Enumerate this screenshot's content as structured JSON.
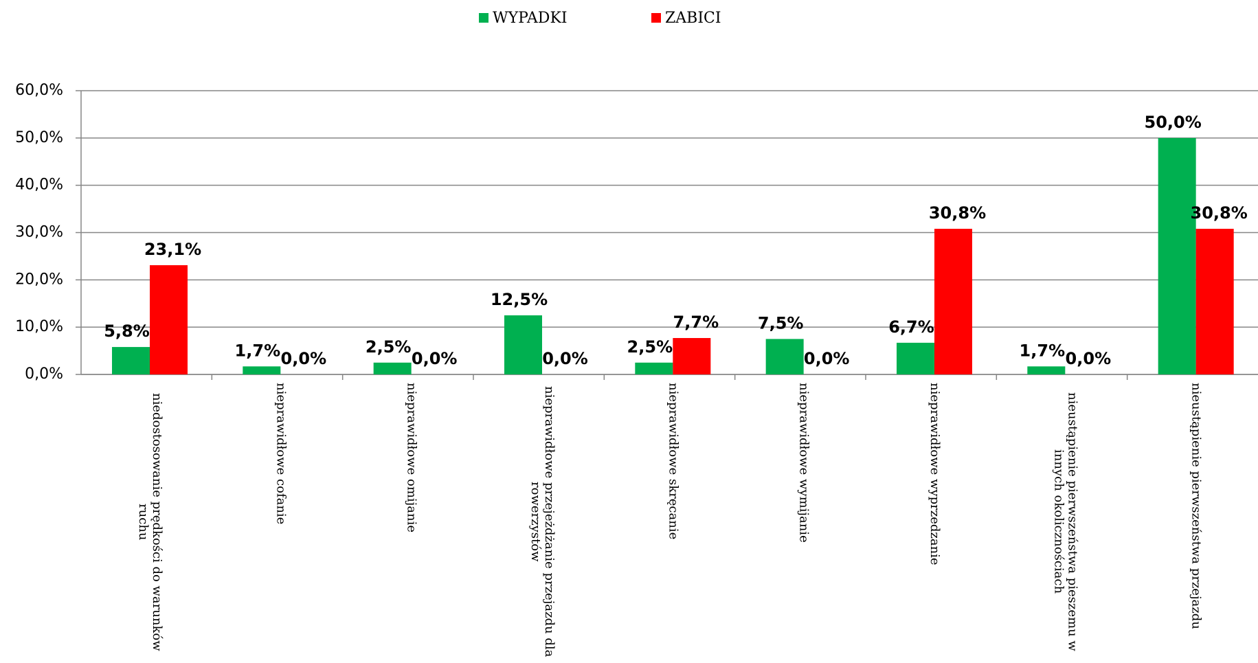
{
  "chart_data": {
    "type": "bar",
    "categories": [
      "niedostosowanie prędkości do warunków ruchu",
      "nieprawidłowe cofanie",
      "nieprawidłowe omijanie",
      "nieprawidłowe przejeżdżanie przejazdu dla rowerzystów",
      "nieprawidłowe skręcanie",
      "nieprawidłowe wymijanie",
      "nieprawidłowe wyprzedzanie",
      "nieustąpienie pierwszeństwa pieszemu w innych okolicznościach",
      "nieustąpienie pierwszeństwa przejazdu"
    ],
    "series": [
      {
        "name": "WYPADKI",
        "color": "#00b050",
        "values": [
          5.8,
          1.7,
          2.5,
          12.5,
          2.5,
          7.5,
          6.7,
          1.7,
          50.0
        ],
        "value_labels": [
          "5,8%",
          "1,7%",
          "2,5%",
          "12,5%",
          "2,5%",
          "7,5%",
          "6,7%",
          "1,7%",
          "50,0%"
        ]
      },
      {
        "name": "ZABICI",
        "color": "#ff0000",
        "values": [
          23.1,
          0.0,
          0.0,
          0.0,
          7.7,
          0.0,
          30.8,
          0.0,
          30.8
        ],
        "value_labels": [
          "23,1%",
          "0,0%",
          "0,0%",
          "0,0%",
          "7,7%",
          "0,0%",
          "30,8%",
          "0,0%",
          "30,8%"
        ]
      }
    ],
    "ylim": [
      0,
      60
    ],
    "yticks": [
      {
        "value": 0,
        "label": "0,0%"
      },
      {
        "value": 10,
        "label": "10,0%"
      },
      {
        "value": 20,
        "label": "20,0%"
      },
      {
        "value": 30,
        "label": "30,0%"
      },
      {
        "value": 40,
        "label": "40,0%"
      },
      {
        "value": 50,
        "label": "50,0%"
      },
      {
        "value": 60,
        "label": "60,0%"
      }
    ],
    "grid": true,
    "legend": "top"
  }
}
